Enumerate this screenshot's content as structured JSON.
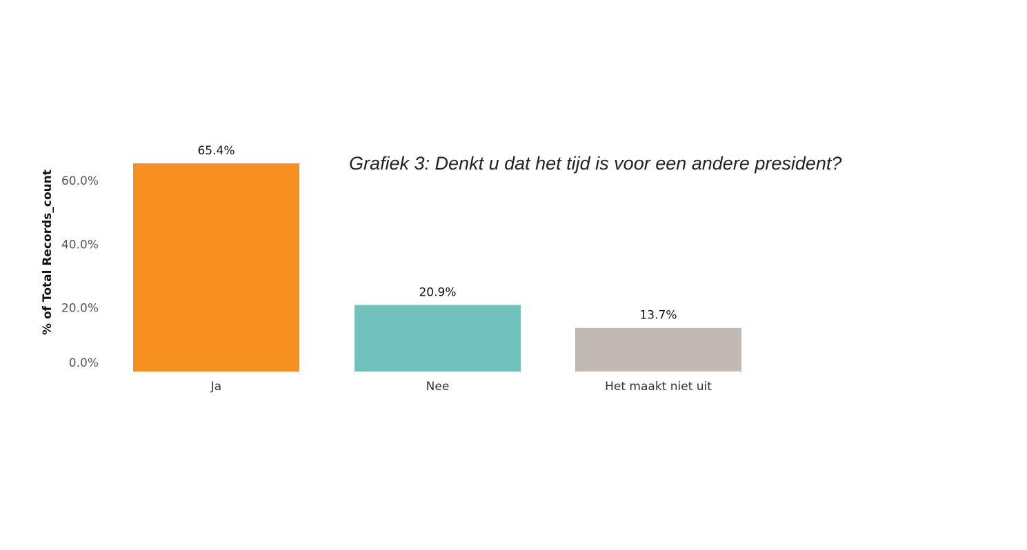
{
  "chart_data": {
    "type": "bar",
    "title": "Grafiek 3: Denkt u dat het tijd is voor een andere president?",
    "ylabel": "% of Total Records_count",
    "xlabel": "",
    "categories": [
      "Ja",
      "Nee",
      "Het maakt niet uit"
    ],
    "values": [
      65.4,
      20.9,
      13.7
    ],
    "data_labels": [
      "65.4%",
      "20.9%",
      "13.7%"
    ],
    "bar_colors": [
      "#f79021",
      "#71c1bc",
      "#c2b9b4"
    ],
    "ylim": [
      0,
      65.4
    ],
    "yticks": [
      0,
      20,
      40,
      60
    ],
    "ytick_labels": [
      "0.0%",
      "20.0%",
      "40.0%",
      "60.0%"
    ],
    "grid": false,
    "legend": "none"
  }
}
